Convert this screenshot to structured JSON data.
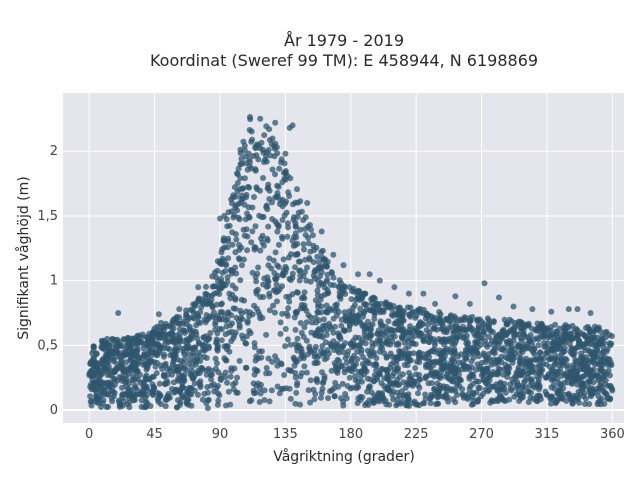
{
  "chart_data": {
    "type": "scatter",
    "title": "År 1979 - 2019",
    "subtitle": "Koordinat (Sweref 99 TM): E 458944, N 6198869",
    "xlabel": "Vågriktning (grader)",
    "ylabel": "Signifikant våghöjd (m)",
    "xlim": [
      -18,
      368
    ],
    "ylim": [
      -0.1,
      2.45
    ],
    "x_ticks": [
      0,
      45,
      90,
      135,
      180,
      225,
      270,
      315,
      360
    ],
    "y_ticks": [
      0,
      0.5,
      1,
      1.5,
      2
    ],
    "x_tick_labels": [
      "0",
      "45",
      "90",
      "135",
      "180",
      "225",
      "270",
      "315",
      "360"
    ],
    "y_tick_labels": [
      "0",
      "0,5",
      "1",
      "1,5",
      "2"
    ],
    "grid": true,
    "legend": "none",
    "marker_color": "#2f566d",
    "plot_background": "#e5e5ee",
    "envelope": {
      "x": [
        0,
        10,
        20,
        30,
        40,
        50,
        60,
        70,
        80,
        90,
        95,
        100,
        105,
        110,
        115,
        120,
        125,
        130,
        135,
        140,
        145,
        150,
        160,
        170,
        180,
        190,
        200,
        210,
        220,
        230,
        240,
        250,
        260,
        270,
        280,
        290,
        300,
        310,
        320,
        330,
        340,
        350,
        360
      ],
      "y_max": [
        0.5,
        0.55,
        0.55,
        0.58,
        0.6,
        0.68,
        0.72,
        0.8,
        0.95,
        1.2,
        1.5,
        1.75,
        2.1,
        2.35,
        2.35,
        2.25,
        2.15,
        2.05,
        1.95,
        1.8,
        1.65,
        1.5,
        1.25,
        1.05,
        0.95,
        0.9,
        0.85,
        0.82,
        0.8,
        0.78,
        0.76,
        0.74,
        0.72,
        0.72,
        0.7,
        0.7,
        0.68,
        0.67,
        0.66,
        0.66,
        0.65,
        0.65,
        0.6
      ],
      "y_min": [
        0.02,
        0.02,
        0.02,
        0.02,
        0.02,
        0.01,
        0.01,
        0.01,
        0.01,
        0.01,
        0.02,
        0.03,
        0.03,
        0.04,
        0.04,
        0.04,
        0.03,
        0.03,
        0.03,
        0.03,
        0.03,
        0.03,
        0.03,
        0.03,
        0.03,
        0.03,
        0.03,
        0.03,
        0.03,
        0.03,
        0.04,
        0.04,
        0.04,
        0.04,
        0.04,
        0.04,
        0.04,
        0.04,
        0.04,
        0.04,
        0.04,
        0.04,
        0.04
      ]
    },
    "outliers": [
      [
        20,
        0.75
      ],
      [
        48,
        0.74
      ],
      [
        62,
        0.78
      ],
      [
        75,
        0.95
      ],
      [
        90,
        1.48
      ],
      [
        93,
        1.5
      ],
      [
        95,
        1.42
      ],
      [
        138,
        2.18
      ],
      [
        140,
        2.2
      ],
      [
        128,
        2.22
      ],
      [
        135,
        1.98
      ],
      [
        150,
        1.6
      ],
      [
        160,
        1.38
      ],
      [
        168,
        1.2
      ],
      [
        175,
        1.12
      ],
      [
        185,
        1.05
      ],
      [
        193,
        1.05
      ],
      [
        200,
        1.0
      ],
      [
        210,
        0.95
      ],
      [
        220,
        0.9
      ],
      [
        230,
        0.9
      ],
      [
        238,
        0.82
      ],
      [
        252,
        0.88
      ],
      [
        262,
        0.82
      ],
      [
        272,
        0.98
      ],
      [
        282,
        0.87
      ],
      [
        292,
        0.8
      ],
      [
        305,
        0.78
      ],
      [
        318,
        0.76
      ],
      [
        330,
        0.78
      ],
      [
        336,
        0.78
      ],
      [
        345,
        0.75
      ],
      [
        355,
        0.6
      ],
      [
        358,
        0.58
      ]
    ]
  }
}
